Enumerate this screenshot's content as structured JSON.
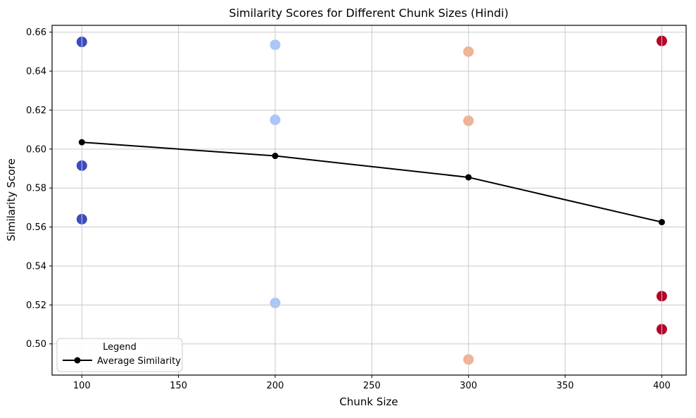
{
  "chart_data": {
    "type": "scatter",
    "title": "Similarity Scores for Different Chunk Sizes (Hindi)",
    "xlabel": "Chunk Size",
    "ylabel": "Similarity Score",
    "xlim": [
      84.6,
      412.6
    ],
    "ylim": [
      0.484,
      0.6635
    ],
    "xticks": [
      100,
      150,
      200,
      250,
      300,
      350,
      400
    ],
    "xtick_labels": [
      "100",
      "150",
      "200",
      "250",
      "300",
      "350",
      "400"
    ],
    "yticks": [
      0.5,
      0.52,
      0.54,
      0.56,
      0.58,
      0.6,
      0.62,
      0.64,
      0.66
    ],
    "ytick_labels": [
      "0.50",
      "0.52",
      "0.54",
      "0.56",
      "0.58",
      "0.60",
      "0.62",
      "0.64",
      "0.66"
    ],
    "grid": true,
    "grid_color": "#c9c9c9",
    "scatter_groups": [
      {
        "chunk_size": 100,
        "color": "#3b4cc0",
        "values": [
          0.655,
          0.5915,
          0.564
        ]
      },
      {
        "chunk_size": 200,
        "color": "#a9c6fd",
        "values": [
          0.6535,
          0.615,
          0.521
        ]
      },
      {
        "chunk_size": 300,
        "color": "#f5b190",
        "values": [
          0.65,
          0.6145,
          0.492
        ]
      },
      {
        "chunk_size": 400,
        "color": "#b40426",
        "values": [
          0.6555,
          0.5245,
          0.5075
        ]
      }
    ],
    "average_line": {
      "name": "Average Similarity",
      "color": "#000000",
      "x": [
        100,
        200,
        300,
        400
      ],
      "y": [
        0.6035,
        0.5965,
        0.5855,
        0.5625
      ]
    },
    "legend": {
      "title": "Legend",
      "position": "lower left",
      "entries": [
        {
          "label": "Average Similarity",
          "color": "#000000",
          "marker": "line-with-dot"
        }
      ]
    }
  }
}
